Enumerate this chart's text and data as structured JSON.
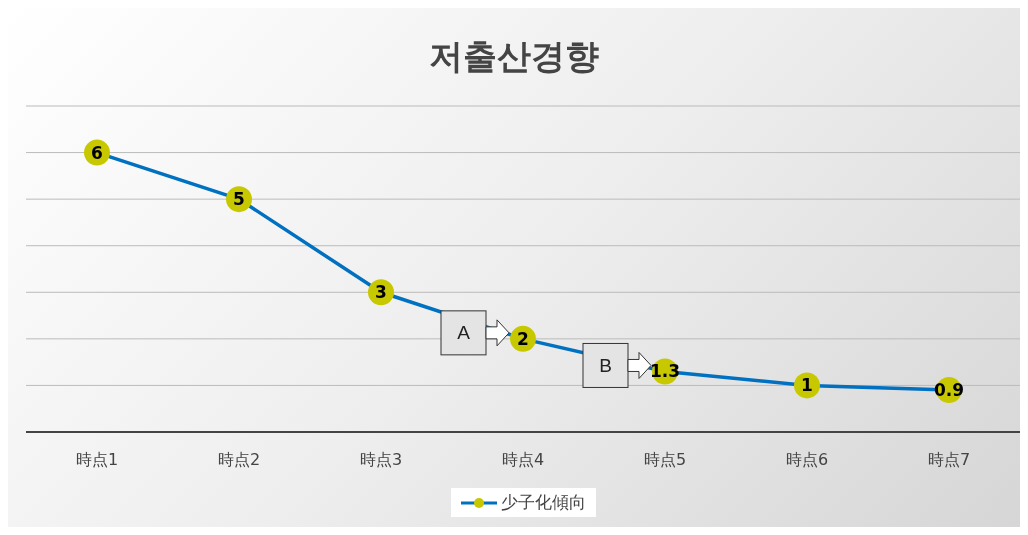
{
  "chart_data": {
    "type": "line",
    "title": "저출산경향",
    "categories": [
      "時点1",
      "時点2",
      "時点3",
      "時点4",
      "時点5",
      "時点6",
      "時点7"
    ],
    "series": [
      {
        "name": "少子化傾向",
        "color": "#0070c0",
        "values": [
          6,
          5,
          3,
          2,
          1.3,
          1,
          0.9
        ]
      }
    ],
    "ylim": [
      0,
      7
    ],
    "yticks": [
      {
        "value": 0,
        "label": null
      },
      {
        "value": 1,
        "label": null
      },
      {
        "value": 2,
        "label": null
      },
      {
        "value": 3,
        "label": null
      },
      {
        "value": 4,
        "label": null
      },
      {
        "value": 5,
        "label": null
      },
      {
        "value": 6,
        "label": null
      },
      {
        "value": 7,
        "label": null
      }
    ],
    "tick_labels": "x",
    "grid": "y",
    "legend": "bottom",
    "marker": "circle",
    "data_labels": true,
    "annotations": [
      {
        "text": "A",
        "x": "時点4",
        "y": 2
      },
      {
        "text": "B",
        "x": "時点5",
        "y": 1.3
      }
    ]
  }
}
